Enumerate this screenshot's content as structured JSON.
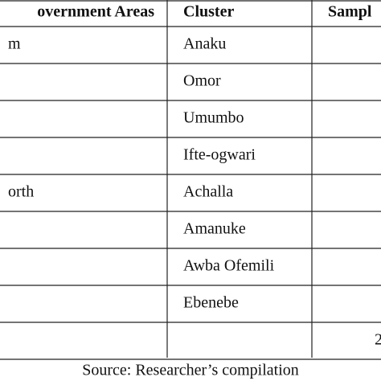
{
  "table": {
    "header": {
      "area": "overnment Areas",
      "cluster": "Cluster",
      "sample": "Sampl"
    },
    "rows": [
      {
        "area": "m",
        "cluster": "Anaku"
      },
      {
        "cluster": "Omor"
      },
      {
        "cluster": "Umumbo"
      },
      {
        "cluster": "Ifte-ogwari"
      },
      {
        "area": "orth",
        "cluster": "Achalla"
      },
      {
        "cluster": "Amanuke"
      },
      {
        "cluster": "Awba Ofemili"
      },
      {
        "cluster": "Ebenebe"
      },
      {
        "sample": "2"
      }
    ]
  },
  "caption": "Source: Researcher’s compilation"
}
